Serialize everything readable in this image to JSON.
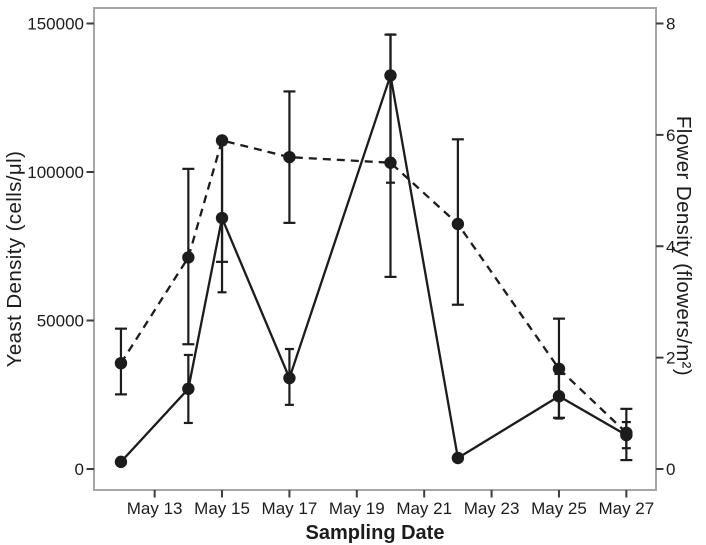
{
  "figure": {
    "x_axis": {
      "title": "Sampling Date",
      "tick_labels": [
        "May 13",
        "May 15",
        "May 17",
        "May 19",
        "May 21",
        "May 23",
        "May 25",
        "May 27"
      ],
      "tick_days": [
        13,
        15,
        17,
        19,
        21,
        23,
        25,
        27
      ]
    },
    "y_left": {
      "title": "Yeast Density (cells/μl)",
      "tick_labels": [
        "0",
        "50000",
        "100000",
        "150000"
      ],
      "tick_values": [
        0,
        50000,
        100000,
        150000
      ],
      "range": [
        0,
        150000
      ]
    },
    "y_right": {
      "title": "Flower Density (flowers/m²)",
      "tick_labels": [
        "0",
        "2",
        "4",
        "6",
        "8"
      ],
      "tick_values": [
        0,
        2,
        4,
        6,
        8
      ],
      "range": [
        0,
        8
      ]
    },
    "colors": {
      "ink": "#1c1c1c",
      "frame": "#a6a6a6",
      "tick": "#3d3d3d",
      "background": "#ffffff"
    }
  },
  "chart_data": {
    "type": "line",
    "title": "",
    "xlabel": "Sampling Date",
    "grid": false,
    "legend": "none",
    "x_dates": [
      "May 12",
      "May 14",
      "May 15",
      "May 17",
      "May 20",
      "May 22",
      "May 25",
      "May 27"
    ],
    "x_days": [
      12,
      14,
      15,
      17,
      20,
      22,
      25,
      27
    ],
    "x_domain_days": [
      11.2,
      27.88
    ],
    "series": [
      {
        "name": "Yeast Density (cells/μl)",
        "axis": "left",
        "line_style": "solid",
        "marker": "filled-circle",
        "ylim": [
          0,
          150000
        ],
        "values": [
          2400,
          27000,
          84500,
          30600,
          132500,
          3700,
          24500,
          11400
        ],
        "err_low": [
          null,
          15500,
          59500,
          21600,
          96400,
          null,
          17000,
          7000
        ],
        "err_high": [
          null,
          38400,
          109300,
          40400,
          146300,
          null,
          32000,
          15800
        ]
      },
      {
        "name": "Flower Density (flowers/m²)",
        "axis": "right",
        "line_style": "dashed",
        "marker": "filled-circle",
        "ylim": [
          0,
          8
        ],
        "values": [
          1.9,
          3.8,
          5.9,
          5.6,
          5.5,
          4.4,
          1.8,
          0.65
        ],
        "err_low": [
          1.34,
          2.24,
          3.72,
          4.42,
          3.45,
          2.95,
          0.92,
          0.16
        ],
        "err_high": [
          2.52,
          5.39,
          5.91,
          6.78,
          7.8,
          5.92,
          2.7,
          1.08
        ]
      }
    ]
  }
}
